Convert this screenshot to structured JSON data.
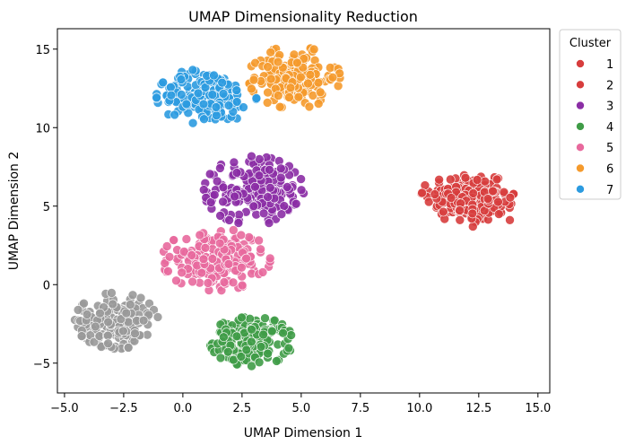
{
  "chart_data": {
    "type": "scatter",
    "title": "UMAP Dimensionality Reduction",
    "xlabel": "UMAP Dimension 1",
    "ylabel": "UMAP Dimension 2",
    "xlim": [
      -5.3,
      15.5
    ],
    "ylim": [
      -6.9,
      16.3
    ],
    "x_ticks": [
      -5.0,
      -2.5,
      0.0,
      2.5,
      5.0,
      7.5,
      10.0,
      12.5,
      15.0
    ],
    "x_tick_labels": [
      "−5.0",
      "−2.5",
      "0.0",
      "2.5",
      "5.0",
      "7.5",
      "10.0",
      "12.5",
      "15.0"
    ],
    "y_ticks": [
      -5,
      0,
      5,
      10,
      15
    ],
    "y_tick_labels": [
      "−5",
      "0",
      "5",
      "10",
      "15"
    ],
    "grid": false,
    "legend": {
      "title": "Cluster",
      "placement": "outside-right-top"
    },
    "series": [
      {
        "name": "1",
        "color": "#d73d3d",
        "center": [
          12.0,
          5.6
        ],
        "spread": [
          1.1,
          0.9
        ],
        "points": 150
      },
      {
        "name": "2",
        "color": "#d73d3d",
        "center": [
          12.8,
          5.0
        ],
        "spread": [
          0.9,
          0.7
        ],
        "points": 60
      },
      {
        "name": "3",
        "color": "#8b2ea5",
        "center": [
          3.0,
          6.0
        ],
        "spread": [
          1.2,
          1.1
        ],
        "points": 190
      },
      {
        "name": "4",
        "color": "#3f9c47",
        "center": [
          2.9,
          -3.6
        ],
        "spread": [
          1.0,
          0.8
        ],
        "points": 170
      },
      {
        "name": "5",
        "color": "#e8699d",
        "center": [
          1.4,
          1.6
        ],
        "spread": [
          1.3,
          1.0
        ],
        "points": 190
      },
      {
        "name": "6",
        "color": "#f59a2c",
        "center": [
          4.7,
          13.2
        ],
        "spread": [
          1.1,
          1.0
        ],
        "points": 160
      },
      {
        "name": "7",
        "color": "#2c9be0",
        "center": [
          1.0,
          12.0
        ],
        "spread": [
          1.2,
          0.9
        ],
        "points": 190
      },
      {
        "name": "",
        "color": "#999999",
        "center": [
          -2.8,
          -2.3
        ],
        "spread": [
          1.0,
          0.9
        ],
        "points": 190
      }
    ]
  }
}
